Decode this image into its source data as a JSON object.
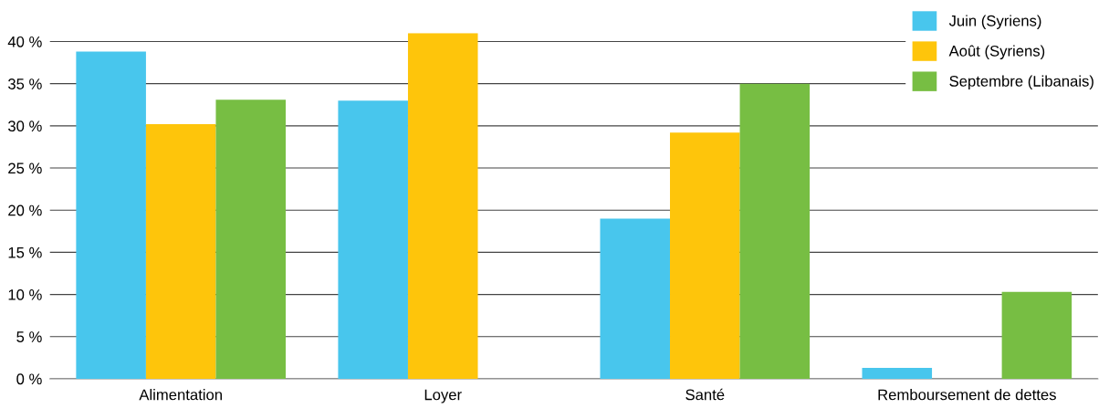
{
  "chart_data": {
    "type": "bar",
    "categories": [
      "Alimentation",
      "Loyer",
      "Santé",
      "Remboursement de dettes"
    ],
    "series": [
      {
        "name": "Juin (Syriens)",
        "color": "#48c6ed",
        "values": [
          38.8,
          33.0,
          19.0,
          1.3
        ]
      },
      {
        "name": "Août (Syriens)",
        "color": "#fec50b",
        "values": [
          30.2,
          41.0,
          29.2,
          null
        ]
      },
      {
        "name": "Septembre (Libanais)",
        "color": "#77be43",
        "values": [
          33.1,
          null,
          35.0,
          10.3
        ]
      }
    ],
    "ylim": [
      0,
      41
    ],
    "yticks": [
      {
        "value": 0,
        "label": "0 %"
      },
      {
        "value": 5,
        "label": "5 %"
      },
      {
        "value": 10,
        "label": "10 %"
      },
      {
        "value": 15,
        "label": "15 %"
      },
      {
        "value": 20,
        "label": "20 %"
      },
      {
        "value": 25,
        "label": "25 %"
      },
      {
        "value": 30,
        "label": "30 %"
      },
      {
        "value": 35,
        "label": "35 %"
      },
      {
        "value": 40,
        "label": "40 %"
      }
    ],
    "grid": "y",
    "legend": "top right"
  }
}
